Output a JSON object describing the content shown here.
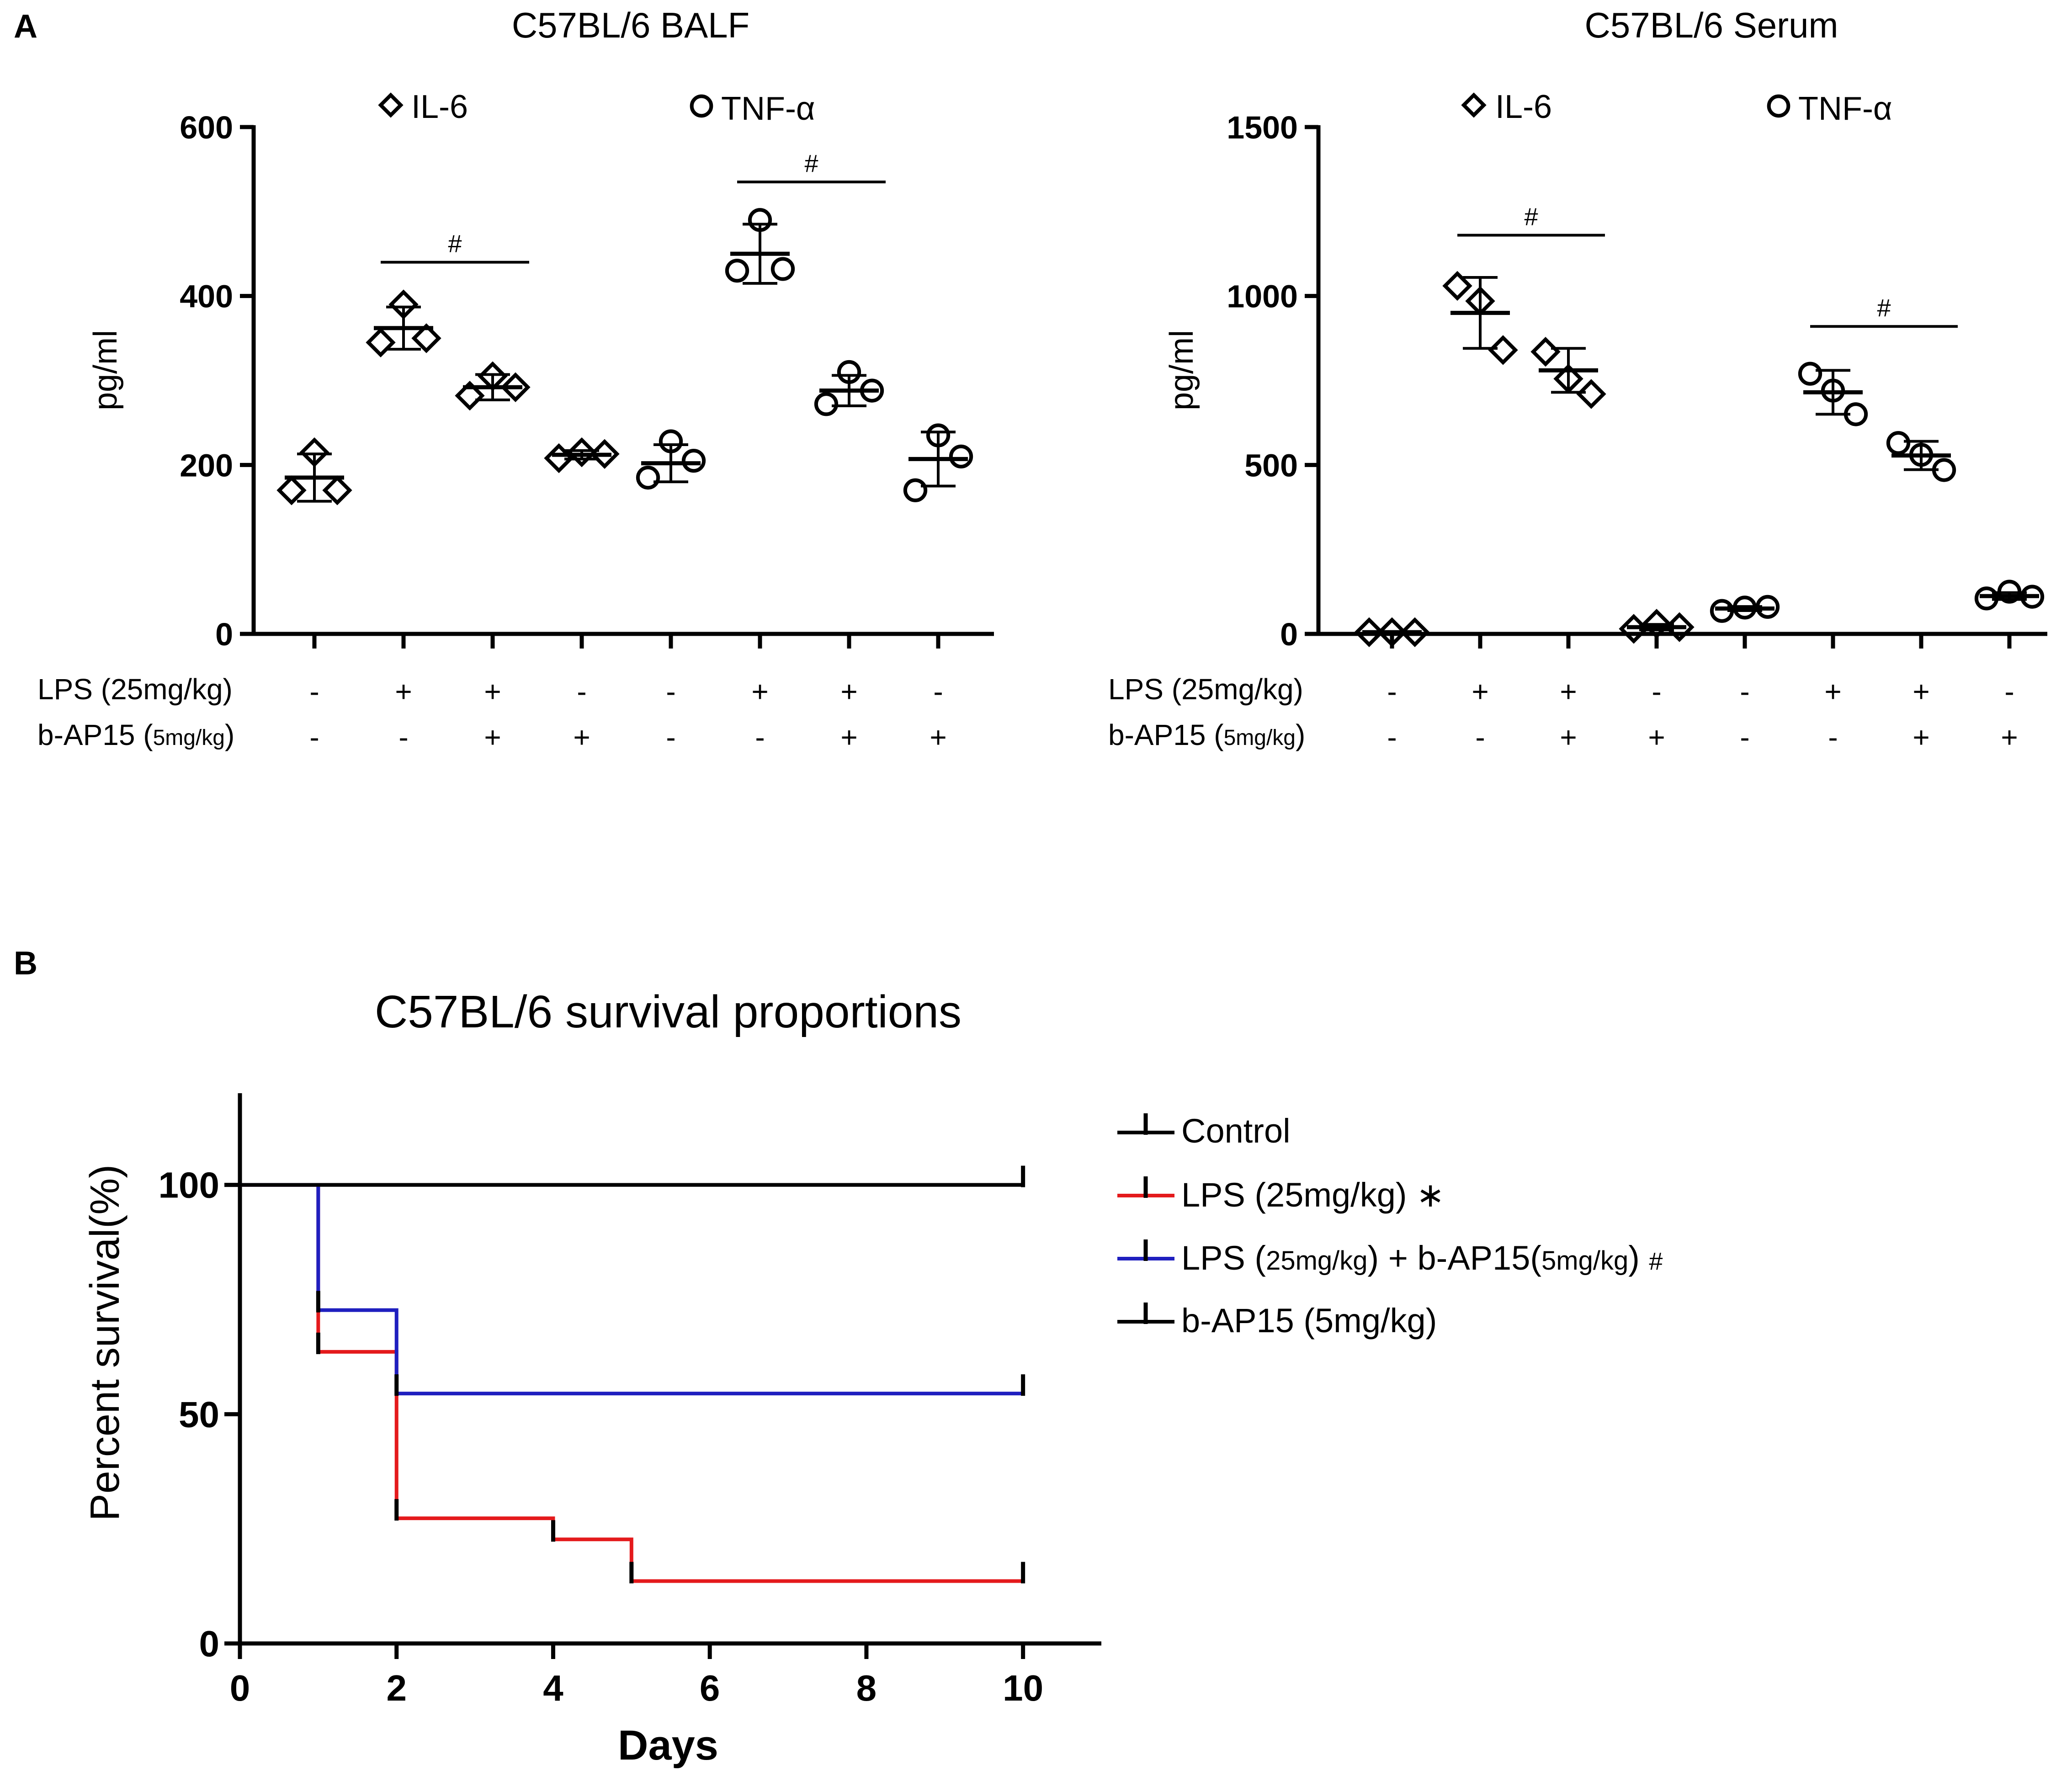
{
  "panel_labels": {
    "a": "A",
    "b": "B"
  },
  "colors": {
    "black": "#000000",
    "red": "#e41a1c",
    "blue": "#1f1fbf"
  },
  "chart_data": [
    {
      "id": "balf",
      "type": "scatter",
      "title": "C57BL/6 BALF",
      "ylabel": "pg/ml",
      "ylim": [
        0,
        600
      ],
      "yticks": [
        0,
        200,
        400,
        600
      ],
      "legend": [
        {
          "marker": "diamond",
          "label": "IL-6"
        },
        {
          "marker": "circle",
          "label": "TNF-α"
        }
      ],
      "row_labels": {
        "lps": "LPS (25mg/kg)",
        "bap_main": "b-AP15 (",
        "bap_sub": "5mg/kg",
        "bap_close": ")"
      },
      "lps_signs": [
        "-",
        "+",
        "+",
        "-",
        "-",
        "+",
        "+",
        "-"
      ],
      "bap_signs": [
        "-",
        "-",
        "+",
        "+",
        "-",
        "-",
        "+",
        "+"
      ],
      "groups": [
        {
          "marker": "diamond",
          "points": [
            170,
            215,
            170
          ],
          "mean": 185,
          "sd": 28
        },
        {
          "marker": "diamond",
          "points": [
            345,
            390,
            350
          ],
          "mean": 362,
          "sd": 25
        },
        {
          "marker": "diamond",
          "points": [
            282,
            305,
            292
          ],
          "mean": 292,
          "sd": 15
        },
        {
          "marker": "diamond",
          "points": [
            208,
            215,
            213
          ],
          "mean": 212,
          "sd": 5
        },
        {
          "marker": "circle",
          "points": [
            185,
            228,
            205
          ],
          "mean": 202,
          "sd": 22
        },
        {
          "marker": "circle",
          "points": [
            430,
            490,
            432
          ],
          "mean": 450,
          "sd": 35
        },
        {
          "marker": "circle",
          "points": [
            272,
            310,
            288
          ],
          "mean": 288,
          "sd": 18
        },
        {
          "marker": "circle",
          "points": [
            170,
            235,
            210
          ],
          "mean": 207,
          "sd": 32
        }
      ],
      "significance": [
        {
          "from": 1,
          "to": 2,
          "y": 440,
          "label": "#"
        },
        {
          "from": 5,
          "to": 6,
          "y": 535,
          "label": "#"
        }
      ]
    },
    {
      "id": "serum",
      "type": "scatter",
      "title": "C57BL/6 Serum",
      "ylabel": "pg/ml",
      "ylim": [
        0,
        1500
      ],
      "yticks": [
        0,
        500,
        1000,
        1500
      ],
      "legend": [
        {
          "marker": "diamond",
          "label": "IL-6"
        },
        {
          "marker": "circle",
          "label": "TNF-α"
        }
      ],
      "row_labels": {
        "lps": "LPS (25mg/kg)",
        "bap_main": "b-AP15 (",
        "bap_sub": "5mg/kg",
        "bap_close": ")"
      },
      "lps_signs": [
        "-",
        "+",
        "+",
        "-",
        "-",
        "+",
        "+",
        "-"
      ],
      "bap_signs": [
        "-",
        "-",
        "+",
        "+",
        "-",
        "-",
        "+",
        "+"
      ],
      "groups": [
        {
          "marker": "diamond",
          "points": [
            5,
            5,
            5
          ],
          "mean": 5,
          "sd": 0
        },
        {
          "marker": "diamond",
          "points": [
            1030,
            985,
            840
          ],
          "mean": 950,
          "sd": 105
        },
        {
          "marker": "diamond",
          "points": [
            835,
            755,
            710
          ],
          "mean": 780,
          "sd": 65
        },
        {
          "marker": "diamond",
          "points": [
            15,
            30,
            20
          ],
          "mean": 20,
          "sd": 8
        },
        {
          "marker": "circle",
          "points": [
            68,
            78,
            80
          ],
          "mean": 75,
          "sd": 6
        },
        {
          "marker": "circle",
          "points": [
            770,
            720,
            650
          ],
          "mean": 715,
          "sd": 65
        },
        {
          "marker": "circle",
          "points": [
            565,
            530,
            485
          ],
          "mean": 528,
          "sd": 42
        },
        {
          "marker": "circle",
          "points": [
            105,
            125,
            110
          ],
          "mean": 112,
          "sd": 10
        }
      ],
      "significance": [
        {
          "from": 1,
          "to": 2,
          "y": 1180,
          "label": "#"
        },
        {
          "from": 5,
          "to": 6,
          "y": 910,
          "label": "#"
        }
      ]
    },
    {
      "id": "survival",
      "type": "line",
      "title": "C57BL/6 survival proportions",
      "xlabel": "Days",
      "ylabel": "Percent survival(%)",
      "xlim": [
        0,
        11
      ],
      "ylim": [
        0,
        120
      ],
      "xticks": [
        0,
        2,
        4,
        6,
        8,
        10
      ],
      "yticks": [
        0,
        50,
        100
      ],
      "series": [
        {
          "name": "Control",
          "color": "#000000",
          "steps": [
            [
              0,
              100
            ],
            [
              10,
              100
            ]
          ],
          "censor": [
            [
              10,
              100
            ]
          ]
        },
        {
          "name": "LPS (25mg/kg) ∗",
          "label_main": "LPS (25mg/kg)",
          "label_mark": "∗",
          "color": "#e41a1c",
          "steps": [
            [
              0,
              100
            ],
            [
              1,
              100
            ],
            [
              1,
              63.6
            ],
            [
              2,
              63.6
            ],
            [
              2,
              27.3
            ],
            [
              4,
              27.3
            ],
            [
              4,
              22.7
            ],
            [
              5,
              22.7
            ],
            [
              5,
              13.6
            ],
            [
              10,
              13.6
            ]
          ],
          "censor": [
            [
              1,
              63.6
            ],
            [
              2,
              27.3
            ],
            [
              4,
              22.7
            ],
            [
              5,
              13.6
            ],
            [
              10,
              13.6
            ]
          ]
        },
        {
          "name": "LPS (25mg/kg) + b-AP15(5mg/kg) #",
          "label_main": "LPS (",
          "label_sub1": "25mg/kg",
          "label_mid": ") + b-AP15(",
          "label_sub2": "5mg/kg",
          "label_end": ") ",
          "label_mark": "#",
          "color": "#1f1fbf",
          "steps": [
            [
              0,
              100
            ],
            [
              1,
              100
            ],
            [
              1,
              72.7
            ],
            [
              2,
              72.7
            ],
            [
              2,
              54.5
            ],
            [
              10,
              54.5
            ]
          ],
          "censor": [
            [
              1,
              72.7
            ],
            [
              2,
              54.5
            ],
            [
              10,
              54.5
            ]
          ]
        },
        {
          "name": "b-AP15 (5mg/kg)",
          "color": "#000000",
          "steps": [
            [
              0,
              100
            ],
            [
              10,
              100
            ]
          ],
          "censor": []
        }
      ]
    }
  ]
}
